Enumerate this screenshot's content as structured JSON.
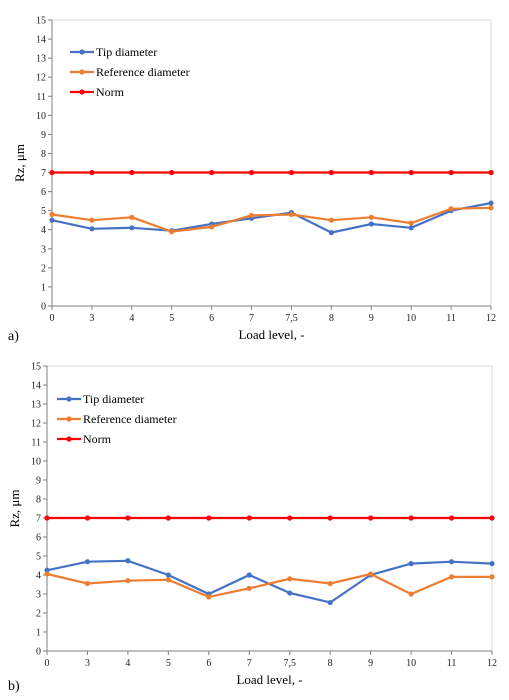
{
  "chart_data": [
    {
      "type": "line",
      "panel_label": "a)",
      "categories": [
        "0",
        "3",
        "4",
        "5",
        "6",
        "7",
        "7,5",
        "8",
        "9",
        "10",
        "11",
        "12"
      ],
      "series": [
        {
          "name": "Tip diameter",
          "color": "#4472c4",
          "values": [
            4.5,
            4.05,
            4.1,
            3.95,
            4.3,
            4.6,
            4.9,
            3.85,
            4.3,
            4.1,
            5.0,
            5.4
          ]
        },
        {
          "name": "Reference diameter",
          "color": "#ed7d31",
          "values": [
            4.8,
            4.5,
            4.65,
            3.9,
            4.15,
            4.75,
            4.8,
            4.5,
            4.65,
            4.35,
            5.1,
            5.15
          ]
        },
        {
          "name": "Norm",
          "color": "#ff0000",
          "values": [
            7,
            7,
            7,
            7,
            7,
            7,
            7,
            7,
            7,
            7,
            7,
            7
          ]
        }
      ],
      "xlabel": "Load level, -",
      "ylabel": "Rz, μm",
      "ylim": [
        0,
        15
      ],
      "yticks": [
        "0",
        "1",
        "2",
        "3",
        "4",
        "5",
        "6",
        "7",
        "8",
        "9",
        "10",
        "11",
        "12",
        "13",
        "14",
        "15"
      ],
      "grid": false,
      "legend": "top-left"
    },
    {
      "type": "line",
      "panel_label": "b)",
      "categories": [
        "0",
        "3",
        "4",
        "5",
        "6",
        "7",
        "7,5",
        "8",
        "9",
        "10",
        "11",
        "12"
      ],
      "series": [
        {
          "name": "Tip diameter",
          "color": "#4472c4",
          "values": [
            4.25,
            4.7,
            4.75,
            4.0,
            3.0,
            4.0,
            3.05,
            2.55,
            4.0,
            4.6,
            4.7,
            4.6
          ]
        },
        {
          "name": "Reference diameter",
          "color": "#ed7d31",
          "values": [
            4.05,
            3.55,
            3.7,
            3.75,
            2.85,
            3.3,
            3.8,
            3.55,
            4.05,
            3.0,
            3.9,
            3.9
          ]
        },
        {
          "name": "Norm",
          "color": "#ff0000",
          "values": [
            7,
            7,
            7,
            7,
            7,
            7,
            7,
            7,
            7,
            7,
            7,
            7
          ]
        }
      ],
      "xlabel": "Load level, -",
      "ylabel": "Rz, μm",
      "ylim": [
        0,
        15
      ],
      "yticks": [
        "0",
        "1",
        "2",
        "3",
        "4",
        "5",
        "6",
        "7",
        "8",
        "9",
        "10",
        "11",
        "12",
        "13",
        "14",
        "15"
      ],
      "grid": false,
      "legend": "top-left"
    }
  ]
}
